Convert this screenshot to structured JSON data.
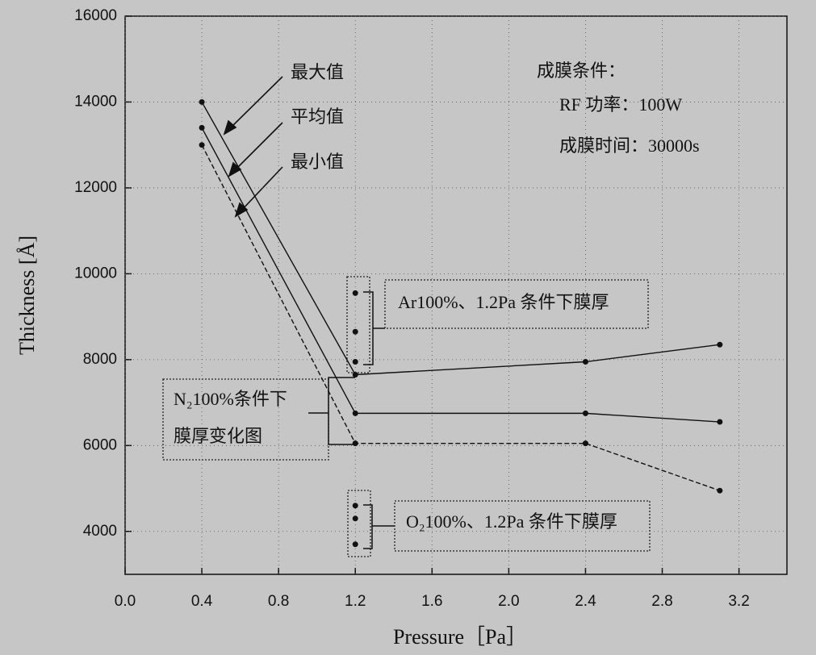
{
  "chart_data": {
    "type": "line",
    "x_label": "Pressure［Pa］",
    "y_label": "Thickness [Å]",
    "x": [
      0.4,
      1.2,
      2.4,
      3.1
    ],
    "series": [
      {
        "name": "最大值",
        "color": "#111111",
        "dashed": false,
        "values": [
          14000,
          7650,
          7950,
          8350
        ]
      },
      {
        "name": "平均值",
        "color": "#111111",
        "dashed": false,
        "values": [
          13400,
          6750,
          6750,
          6550
        ]
      },
      {
        "name": "最小值",
        "color": "#111111",
        "dashed": true,
        "values": [
          13000,
          6050,
          6050,
          4950
        ]
      }
    ],
    "point_groups": [
      {
        "label": "Ar100%、1.2Pa 条件下膜厚",
        "x": [
          1.2,
          1.2,
          1.2
        ],
        "values": [
          9550,
          8650,
          7950
        ]
      },
      {
        "label": "O₂100%、1.2Pa 条件下膜厚",
        "x": [
          1.2,
          1.2,
          1.2
        ],
        "values": [
          4600,
          4300,
          3700
        ]
      }
    ],
    "group_label_lines": [
      "N₂100%条件下",
      "膜厚变化图"
    ],
    "conditions": [
      "成膜条件：",
      "RF 功率：100W",
      "成膜时间：30000s"
    ],
    "xlim": [
      0,
      3.45
    ],
    "ylim": [
      3000,
      16000
    ],
    "xticks": [
      {
        "value": 0,
        "label": "0.0"
      },
      0.4,
      0.8,
      1.2,
      1.6,
      {
        "value": 2,
        "label": "2.0"
      },
      2.4,
      2.8,
      3.2
    ],
    "yticks": [
      4000,
      6000,
      8000,
      10000,
      12000,
      14000,
      16000
    ],
    "grid": true
  }
}
